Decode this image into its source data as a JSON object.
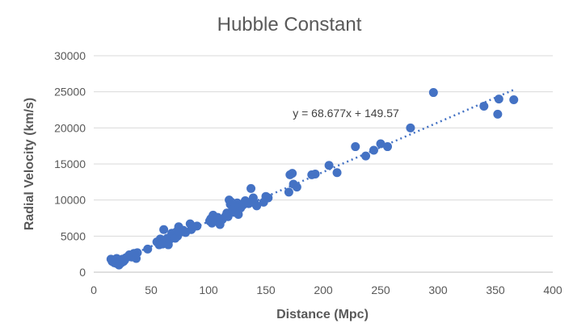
{
  "chart_data": {
    "type": "scatter",
    "title": "Hubble Constant",
    "xlabel": "Distance (Mpc)",
    "ylabel": "Radial Velocity (km/s)",
    "xlim": [
      0,
      400
    ],
    "ylim": [
      0,
      30000
    ],
    "x_ticks": [
      0,
      50,
      100,
      150,
      200,
      250,
      300,
      350,
      400
    ],
    "y_ticks": [
      0,
      5000,
      10000,
      15000,
      20000,
      25000,
      30000
    ],
    "grid": "horizontal",
    "trendline": {
      "type": "linear",
      "slope": 68.677,
      "intercept": 149.57,
      "x_range": [
        15,
        366
      ],
      "equation": "y = 68.677x + 149.57"
    },
    "series": [
      {
        "color": "#4472c4",
        "points": [
          [
            15,
            1800
          ],
          [
            16,
            1500
          ],
          [
            17,
            1700
          ],
          [
            18,
            1300
          ],
          [
            19,
            1600
          ],
          [
            20,
            1900
          ],
          [
            20,
            1200
          ],
          [
            21,
            1400
          ],
          [
            22,
            1000
          ],
          [
            23,
            1600
          ],
          [
            24,
            1300
          ],
          [
            25,
            1800
          ],
          [
            26,
            1500
          ],
          [
            27,
            1700
          ],
          [
            28,
            2000
          ],
          [
            30,
            2200
          ],
          [
            31,
            2400
          ],
          [
            33,
            2100
          ],
          [
            35,
            2600
          ],
          [
            36,
            2300
          ],
          [
            37,
            1900
          ],
          [
            38,
            2700
          ],
          [
            47,
            3200
          ],
          [
            55,
            4200
          ],
          [
            57,
            3800
          ],
          [
            58,
            4600
          ],
          [
            59,
            4000
          ],
          [
            60,
            3900
          ],
          [
            61,
            5900
          ],
          [
            62,
            4400
          ],
          [
            63,
            4100
          ],
          [
            64,
            4700
          ],
          [
            65,
            3800
          ],
          [
            66,
            4500
          ],
          [
            67,
            4900
          ],
          [
            68,
            5400
          ],
          [
            69,
            5100
          ],
          [
            70,
            5300
          ],
          [
            71,
            4700
          ],
          [
            72,
            5600
          ],
          [
            73,
            5000
          ],
          [
            74,
            6300
          ],
          [
            75,
            5500
          ],
          [
            78,
            5800
          ],
          [
            80,
            5500
          ],
          [
            84,
            6700
          ],
          [
            85,
            5900
          ],
          [
            87,
            6300
          ],
          [
            90,
            6400
          ],
          [
            101,
            7100
          ],
          [
            102,
            7400
          ],
          [
            103,
            6800
          ],
          [
            104,
            7900
          ],
          [
            106,
            7200
          ],
          [
            108,
            7600
          ],
          [
            110,
            6600
          ],
          [
            112,
            7300
          ],
          [
            115,
            7800
          ],
          [
            116,
            8200
          ],
          [
            117,
            7700
          ],
          [
            118,
            10000
          ],
          [
            119,
            9400
          ],
          [
            120,
            9700
          ],
          [
            121,
            8700
          ],
          [
            122,
            8300
          ],
          [
            123,
            9000
          ],
          [
            124,
            8500
          ],
          [
            125,
            9600
          ],
          [
            126,
            8000
          ],
          [
            127,
            9200
          ],
          [
            128,
            8900
          ],
          [
            130,
            9300
          ],
          [
            132,
            9900
          ],
          [
            135,
            9500
          ],
          [
            137,
            11600
          ],
          [
            139,
            10300
          ],
          [
            140,
            9600
          ],
          [
            142,
            9200
          ],
          [
            148,
            9700
          ],
          [
            150,
            10500
          ],
          [
            152,
            10300
          ],
          [
            170,
            11100
          ],
          [
            171,
            13500
          ],
          [
            173,
            13700
          ],
          [
            174,
            12200
          ],
          [
            177,
            11800
          ],
          [
            190,
            13500
          ],
          [
            193,
            13600
          ],
          [
            205,
            14800
          ],
          [
            212,
            13800
          ],
          [
            228,
            17400
          ],
          [
            237,
            16100
          ],
          [
            244,
            16900
          ],
          [
            250,
            17800
          ],
          [
            256,
            17400
          ],
          [
            276,
            20000
          ],
          [
            296,
            24900
          ],
          [
            340,
            23000
          ],
          [
            352,
            21900
          ],
          [
            353,
            24000
          ],
          [
            366,
            23900
          ]
        ]
      }
    ]
  }
}
